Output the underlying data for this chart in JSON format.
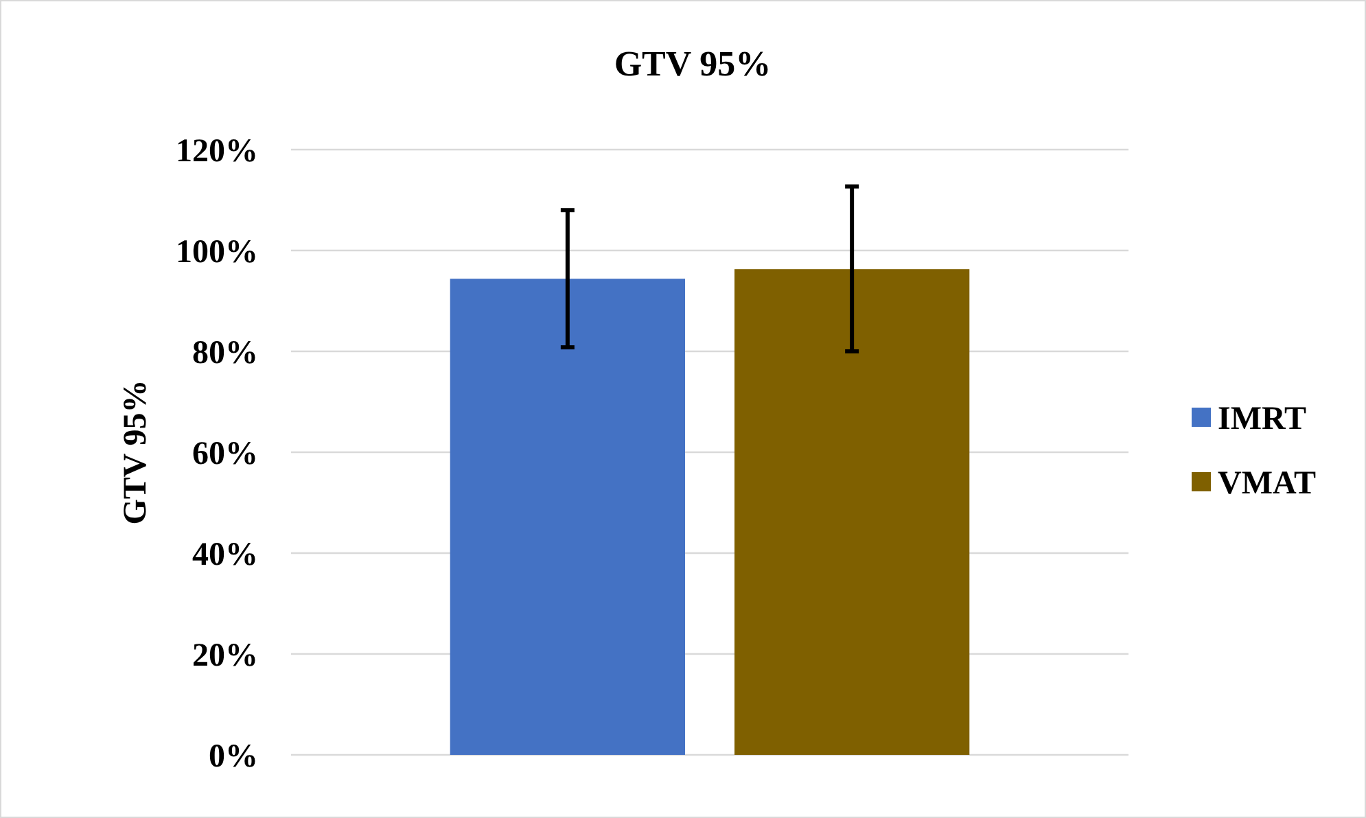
{
  "chart_data": {
    "type": "bar",
    "title": "GTV 95%",
    "ylabel": "GTV 95%",
    "categories": [
      null
    ],
    "series": [
      {
        "name": "IMRT",
        "color": "#4472c4",
        "values": [
          94.4
        ],
        "errors": [
          [
            80.8,
            108
          ]
        ]
      },
      {
        "name": "VMAT",
        "color": "#7f6000",
        "values": [
          96.3
        ],
        "errors": [
          [
            80,
            112.7
          ]
        ]
      }
    ],
    "ylim": [
      0,
      120
    ],
    "yticks": [
      {
        "value": 0,
        "label": "0%"
      },
      {
        "value": 20,
        "label": "20%"
      },
      {
        "value": 40,
        "label": "40%"
      },
      {
        "value": 60,
        "label": "60%"
      },
      {
        "value": 80,
        "label": "80%"
      },
      {
        "value": 100,
        "label": "100%"
      },
      {
        "value": 120,
        "label": "120%"
      }
    ],
    "grid": "y",
    "legend": "right"
  }
}
